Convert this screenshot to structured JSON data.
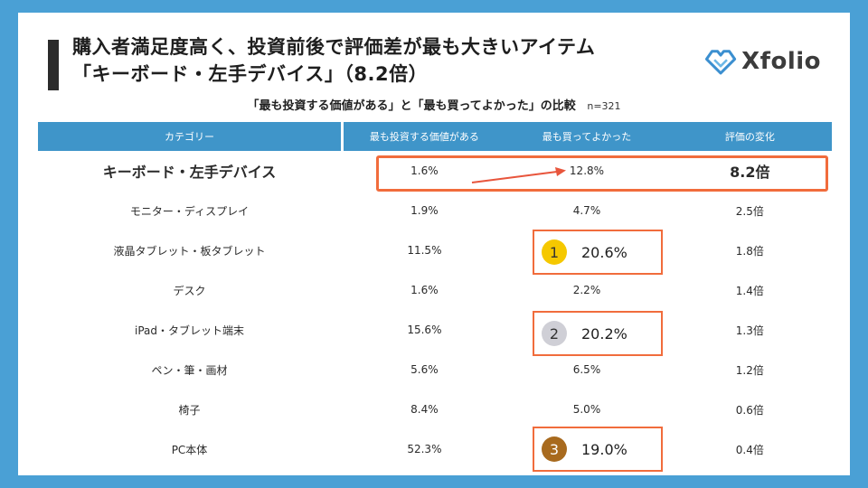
{
  "title": {
    "line1": "購入者満足度高く、投資前後で評価差が最も大きいアイテム",
    "line2": "「キーボード・左手デバイス」（8.2倍）"
  },
  "logo": {
    "text": "Xfolio",
    "icon": "heart-diamond-logo-icon"
  },
  "subtitle": {
    "text": "「最も投資する価値がある」と「最も買ってよかった」の比較",
    "n": "n=321"
  },
  "table": {
    "headers": [
      "カテゴリー",
      "最も投資する価値がある",
      "最も買ってよかった",
      "評価の変化"
    ],
    "rows": [
      {
        "category": "キーボード・左手デバイス",
        "worth": "1.6%",
        "good": "12.8%",
        "change": "8.2倍"
      },
      {
        "category": "モニター・ディスプレイ",
        "worth": "1.9%",
        "good": "4.7%",
        "change": "2.5倍"
      },
      {
        "category": "液晶タブレット・板タブレット",
        "worth": "11.5%",
        "good": "",
        "change": "1.8倍"
      },
      {
        "category": "デスク",
        "worth": "1.6%",
        "good": "2.2%",
        "change": "1.4倍"
      },
      {
        "category": "iPad・タブレット端末",
        "worth": "15.6%",
        "good": "",
        "change": "1.3倍"
      },
      {
        "category": "ペン・筆・画材",
        "worth": "5.6%",
        "good": "6.5%",
        "change": "1.2倍"
      },
      {
        "category": "椅子",
        "worth": "8.4%",
        "good": "5.0%",
        "change": "0.6倍"
      },
      {
        "category": "PC本体",
        "worth": "52.3%",
        "good": "",
        "change": "0.4倍"
      }
    ]
  },
  "ranks": [
    {
      "rank": "1",
      "value": "20.6%",
      "color": "#f5c800"
    },
    {
      "rank": "2",
      "value": "20.2%",
      "color": "#cfcfd6"
    },
    {
      "rank": "3",
      "value": "19.0%",
      "color": "#a86a1e"
    }
  ],
  "colors": {
    "accent": "#f16c3c",
    "header": "#3f95c9",
    "frame": "#4aa0d5"
  }
}
